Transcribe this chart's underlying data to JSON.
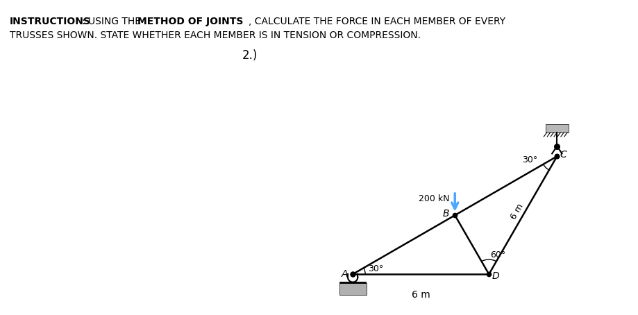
{
  "bg_color": "#ffffff",
  "instruction_bold1": "INSTRUCTIONS",
  "instruction_normal1": ": USING THE ",
  "instruction_bold2": "METHOD OF JOINTS",
  "instruction_normal2": ", CALCULATE THE FORCE IN EACH MEMBER OF EVERY",
  "instruction_line2": "TRUSSES SHOWN. STATE WHETHER EACH MEMBER IS IN TENSION OR COMPRESSION.",
  "problem_number": "2.)",
  "load_label": "200 kN",
  "load_color": "#4da6ff",
  "angle_A": "30°",
  "angle_D": "60°",
  "angle_C": "30°",
  "dim_AD": "6 m",
  "dim_DC": "6 m",
  "node_names": [
    "A",
    "B",
    "C",
    "D"
  ],
  "members": [
    [
      "A",
      "D"
    ],
    [
      "A",
      "B"
    ],
    [
      "B",
      "D"
    ],
    [
      "B",
      "C"
    ],
    [
      "D",
      "C"
    ]
  ],
  "text_fontsize": 10,
  "diagram_fontsize": 9
}
